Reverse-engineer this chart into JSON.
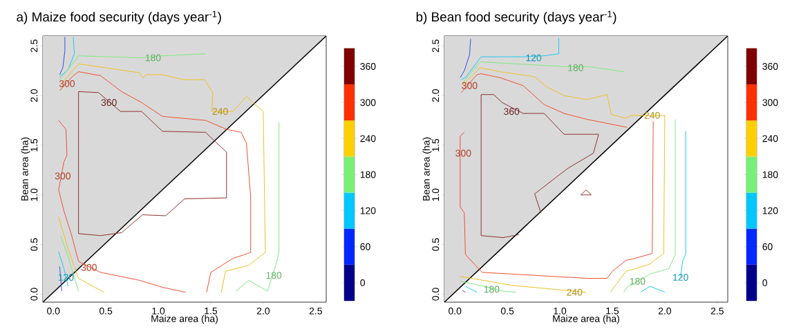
{
  "chart_data": [
    {
      "type": "line",
      "title": "a) Maize food security (days year$^{-1}$)",
      "xlabel": "Maize area (ha)",
      "ylabel": "Bean area (ha)",
      "xlim": [
        -0.1,
        2.6
      ],
      "ylim": [
        -0.08,
        2.6
      ],
      "xticks": [
        {
          "value": 0,
          "label": "0.0"
        },
        0.5,
        {
          "value": 1,
          "label": "1.0"
        },
        1.5,
        {
          "value": 2,
          "label": "2.0"
        },
        2.5
      ],
      "yticks": [
        {
          "value": 0,
          "label": "0.0"
        },
        0.5,
        {
          "value": 1,
          "label": "1.0"
        },
        1.5,
        {
          "value": 2,
          "label": "2.0"
        },
        2.5
      ],
      "clim": [
        -30,
        390
      ],
      "cticks": [
        0,
        60,
        120,
        180,
        240,
        300,
        360
      ],
      "colors": [
        "#00008b",
        "#0028ff",
        "#00c8ff",
        "#78f078",
        "#ffd000",
        "#ff3000",
        "#800000"
      ],
      "series": [
        {
          "color": "#000000",
          "x": [
            -0.1,
            2.6
          ],
          "values": [
            -0.08,
            2.6
          ],
          "lower": [
            -0.08,
            2.6
          ],
          "upper": [
            2.6,
            2.6
          ]
        },
        {
          "color": "#3050e0",
          "x": [
            0.11,
            0.11,
            0.09,
            0.06,
            null,
            0.06,
            0.08
          ],
          "values": [
            2.59,
            2.45,
            2.28,
            2.21,
            null,
            0.28,
            0.03
          ]
        },
        {
          "color": "#20c8f0",
          "x": [
            0.19,
            0.2,
            0.14,
            0.06,
            null,
            0.05,
            0.1,
            0.14
          ],
          "values": [
            2.59,
            2.42,
            2.26,
            2.19,
            null,
            0.43,
            0.26,
            0.08
          ]
        },
        {
          "color": "#80e880",
          "x": [
            0.06,
            0.24,
            0.85,
            1.04,
            1.45,
            null,
            2.15,
            2.15,
            2.13,
            2.04,
            1.86,
            1.74,
            null,
            0.07,
            0.14,
            0.24
          ],
          "values": [
            2.16,
            2.4,
            2.38,
            2.4,
            2.42,
            null,
            1.73,
            0.43,
            0.33,
            0.03,
            0.14,
            0.03,
            null,
            0.59,
            0.38,
            0.03
          ]
        },
        {
          "color": "#f0c020",
          "x": [
            0.07,
            0.24,
            0.82,
            0.85,
            0.89,
            1.04,
            1.24,
            1.44,
            1.52,
            1.51,
            1.71,
            1.84,
            2.0,
            2.02,
            1.86,
            1.64,
            1.6,
            null,
            0.05,
            0.13,
            0.24,
            0.48
          ],
          "values": [
            2.11,
            2.32,
            2.23,
            2.18,
            2.21,
            2.21,
            2.16,
            2.16,
            2.03,
            1.84,
            1.84,
            1.99,
            1.84,
            0.42,
            0.29,
            0.23,
            0.02,
            null,
            0.78,
            0.49,
            0.16,
            0.02
          ]
        },
        {
          "color": "#f05030",
          "x": [
            0.06,
            0.19,
            0.24,
            0.45,
            0.65,
            0.84,
            1.04,
            1.45,
            1.65,
            1.79,
            1.84,
            1.88,
            1.88,
            1.71,
            1.5,
            1.46,
            null,
            0.05,
            0.12,
            0.13,
            0.1,
            0.05,
            0.1,
            0.17,
            0.24,
            0.45,
            0.82,
            1.04,
            1.26
          ],
          "values": [
            2.05,
            2.2,
            2.24,
            2.2,
            2.04,
            1.93,
            1.79,
            1.75,
            1.66,
            1.63,
            1.52,
            0.98,
            0.42,
            0.36,
            0.22,
            0.02,
            null,
            1.75,
            1.66,
            1.4,
            1.33,
            1.05,
            0.84,
            0.61,
            0.33,
            0.22,
            0.14,
            0.07,
            0.02
          ]
        },
        {
          "color": "#903030",
          "x": [
            0.24,
            0.24,
            0.43,
            0.64,
            0.84,
            1.04,
            1.45,
            1.65,
            1.65
          ],
          "values": [
            0.61,
            2.04,
            2.03,
            1.84,
            1.84,
            1.64,
            1.63,
            1.43,
            0.97
          ]
        },
        {
          "color": "#903030",
          "x": [
            1.65,
            1.25,
            1.07,
            0.85,
            0.65,
            0.45,
            0.24
          ],
          "values": [
            0.97,
            0.96,
            0.79,
            0.8,
            0.62,
            0.59,
            0.61
          ]
        }
      ],
      "annotations": [
        {
          "text": "180",
          "x": 0.95,
          "y": 2.38
        },
        {
          "text": "300",
          "x": 0.13,
          "y": 2.12
        },
        {
          "text": "360",
          "x": 0.53,
          "y": 1.93
        },
        {
          "text": "240",
          "x": 1.59,
          "y": 1.84
        },
        {
          "text": "300",
          "x": 0.09,
          "y": 1.19
        },
        {
          "text": "300",
          "x": 0.34,
          "y": 0.27
        },
        {
          "text": "180",
          "x": 2.1,
          "y": 0.19
        },
        {
          "text": "120",
          "x": 0.12,
          "y": 0.17
        }
      ]
    },
    {
      "type": "line",
      "title": "b) Bean food security (days year$^{-1}$)",
      "xlabel": "Maize area (ha)",
      "ylabel": "Bean area (ha)",
      "xlim": [
        -0.1,
        2.6
      ],
      "ylim": [
        -0.08,
        2.6
      ],
      "xticks": [
        {
          "value": 0,
          "label": "0.0"
        },
        0.5,
        {
          "value": 1,
          "label": "1.0"
        },
        1.5,
        {
          "value": 2,
          "label": "2.0"
        },
        2.5
      ],
      "yticks": [
        {
          "value": 0,
          "label": "0.0"
        },
        0.5,
        {
          "value": 1,
          "label": "1.0"
        },
        1.5,
        {
          "value": 2,
          "label": "2.0"
        },
        2.5
      ],
      "clim": [
        -30,
        390
      ],
      "cticks": [
        0,
        60,
        120,
        180,
        240,
        300,
        360
      ],
      "colors": [
        "#00008b",
        "#0028ff",
        "#00c8ff",
        "#78f078",
        "#ffd000",
        "#ff3000",
        "#800000"
      ],
      "series": [
        {
          "color": "#000000",
          "x": [
            -0.1,
            2.6
          ],
          "values": [
            -0.08,
            2.6
          ],
          "lower": [
            -0.08,
            2.6
          ],
          "upper": [
            2.6,
            2.6
          ]
        },
        {
          "color": "#3050e0",
          "x": [
            0.15,
            0.14,
            0.09,
            0.05,
            null,
            0.07,
            0.1
          ],
          "values": [
            2.57,
            2.41,
            2.25,
            2.18,
            null,
            0.04,
            0.02
          ]
        },
        {
          "color": "#20c8f0",
          "x": [
            0.99,
            0.99,
            0.85,
            0.65,
            0.25,
            0.1,
            0.06,
            null,
            2.2,
            2.2,
            2.17,
            2.15,
            null,
            2.0,
            1.86,
            1.77,
            null,
            0.1,
            0.21
          ],
          "values": [
            2.58,
            2.42,
            2.4,
            2.39,
            2.39,
            2.18,
            2.16,
            null,
            1.64,
            0.41,
            0.33,
            0.17,
            null,
            0.02,
            0.08,
            0.02,
            null,
            0.08,
            0.02
          ]
        },
        {
          "color": "#80e880",
          "x": [
            0.07,
            0.24,
            1.07,
            1.28,
            1.61,
            null,
            2.1,
            2.1,
            2.04,
            1.85,
            1.64,
            1.61,
            null,
            0.05,
            0.24,
            0.46,
            0.58
          ],
          "values": [
            2.12,
            2.34,
            2.29,
            2.29,
            2.24,
            null,
            1.76,
            0.4,
            0.26,
            0.2,
            0.07,
            0.02,
            null,
            0.13,
            0.09,
            0.03,
            0.02
          ]
        },
        {
          "color": "#f0c020",
          "x": [
            0.07,
            0.24,
            0.43,
            0.76,
            0.87,
            1.04,
            1.26,
            1.45,
            1.49,
            1.63,
            1.68,
            1.79,
            2.0,
            1.99,
            1.85,
            1.63,
            1.48,
            null,
            0.05,
            0.54,
            1.04,
            1.25
          ],
          "values": [
            2.1,
            2.28,
            2.24,
            2.19,
            2.09,
            2.0,
            1.96,
            2.01,
            1.81,
            1.77,
            1.8,
            1.8,
            1.8,
            0.41,
            0.3,
            0.23,
            0.02,
            null,
            0.18,
            0.09,
            0.04,
            0.02
          ]
        },
        {
          "color": "#f05030",
          "x": [
            0.06,
            0.21,
            0.25,
            0.43,
            0.65,
            0.85,
            1.04,
            1.26,
            1.64,
            null,
            1.89,
            1.88,
            1.71,
            1.63,
            1.5,
            1.45,
            1.26,
            0.26,
            0.1,
            0.09,
            0.05,
            0.05,
            0.09
          ],
          "values": [
            2.03,
            2.21,
            2.22,
            2.18,
            2.1,
            1.91,
            1.82,
            1.76,
            1.68,
            null,
            1.74,
            0.41,
            0.36,
            0.34,
            0.23,
            0.16,
            0.16,
            0.22,
            0.4,
            0.82,
            0.88,
            1.59,
            1.63
          ]
        },
        {
          "color": "#903030",
          "x": [
            0.61,
            0.46,
            0.25,
            0.25,
            0.37,
            0.45,
            0.65,
            0.85,
            1.04,
            1.37,
            1.32,
            1.08,
            0.98,
            0.76,
            0.82
          ],
          "values": [
            0.6,
            0.57,
            0.59,
            2.01,
            2.01,
            1.93,
            1.82,
            1.82,
            1.61,
            1.61,
            1.42,
            1.27,
            1.19,
            1.01,
            0.82
          ]
        },
        {
          "color": "#903030",
          "x": [
            1.2,
            1.25,
            1.3
          ],
          "values": [
            1.0,
            1.05,
            1.0
          ]
        },
        {
          "color": "#903030",
          "x": [
            1.3,
            1.2
          ],
          "values": [
            1.0,
            1.0
          ]
        }
      ],
      "annotations": [
        {
          "text": "120",
          "x": 0.75,
          "y": 2.38
        },
        {
          "text": "180",
          "x": 1.15,
          "y": 2.28
        },
        {
          "text": "300",
          "x": 0.14,
          "y": 2.1
        },
        {
          "text": "360",
          "x": 0.54,
          "y": 1.84
        },
        {
          "text": "240",
          "x": 1.88,
          "y": 1.8
        },
        {
          "text": "300",
          "x": 0.08,
          "y": 1.42
        },
        {
          "text": "180",
          "x": 0.35,
          "y": 0.05
        },
        {
          "text": "240",
          "x": 1.14,
          "y": 0.02
        },
        {
          "text": "180",
          "x": 1.74,
          "y": 0.13
        },
        {
          "text": "120",
          "x": 2.15,
          "y": 0.17
        }
      ]
    }
  ]
}
